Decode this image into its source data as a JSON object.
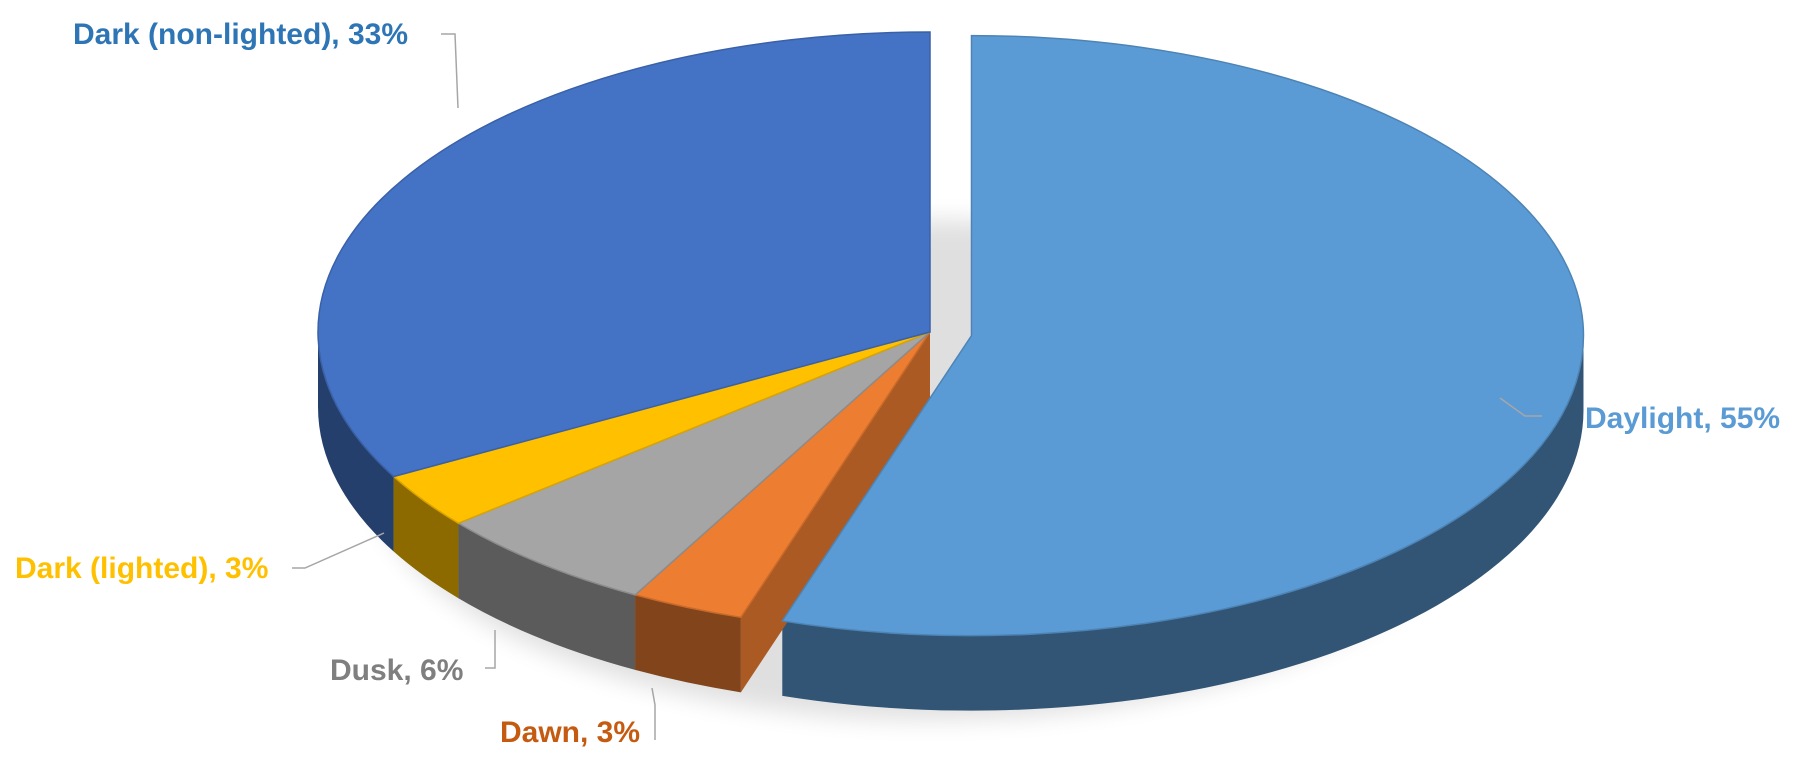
{
  "chart_data": {
    "type": "pie",
    "title": "",
    "labels": [
      "Daylight",
      "Dawn",
      "Dusk",
      "Dark (lighted)",
      "Dark (non-lighted)"
    ],
    "values": [
      55,
      3,
      6,
      3,
      33
    ],
    "unit": "%",
    "colors": [
      "#5B9BD5",
      "#ED7D31",
      "#A5A5A5",
      "#FFC000",
      "#4472C4"
    ],
    "data_labels": [
      "Daylight, 55%",
      "Dawn, 3%",
      "Dusk, 6%",
      "Dark (lighted), 3%",
      "Dark (non-lighted), 33%"
    ],
    "style": "3d-exploded",
    "exploded_slice": "Daylight",
    "legend": "none"
  }
}
